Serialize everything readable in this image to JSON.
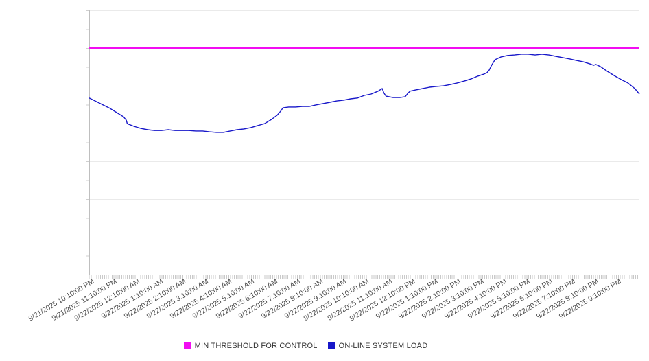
{
  "chart_data": {
    "type": "line",
    "title": "",
    "xlabel": "",
    "ylabel": "",
    "y_axis": {
      "tick_labels_visible": false,
      "normalized_range": [
        0,
        100
      ],
      "gridlines": true
    },
    "x_axis": {
      "unit": "datetime, hourly ticks with 5-minute minor ticks",
      "labels": [
        "9/21/2025 10:10:00 PM",
        "9/21/2025 11:10:00 PM",
        "9/22/2025 12:10:00 AM",
        "9/22/2025 1:10:00 AM",
        "9/22/2025 2:10:00 AM",
        "9/22/2025 3:10:00 AM",
        "9/22/2025 4:10:00 AM",
        "9/22/2025 5:10:00 AM",
        "9/22/2025 6:10:00 AM",
        "9/22/2025 7:10:00 AM",
        "9/22/2025 8:10:00 AM",
        "9/22/2025 9:10:00 AM",
        "9/22/2025 10:10:00 AM",
        "9/22/2025 11:10:00 AM",
        "9/22/2025 12:10:00 PM",
        "9/22/2025 1:10:00 PM",
        "9/22/2025 2:10:00 PM",
        "9/22/2025 3:10:00 PM",
        "9/22/2025 4:10:00 PM",
        "9/22/2025 5:10:00 PM",
        "9/22/2025 6:10:00 PM",
        "9/22/2025 7:10:00 PM",
        "9/22/2025 8:10:00 PM",
        "9/22/2025 9:10:00 PM"
      ]
    },
    "legend_position": "bottom-center",
    "series": [
      {
        "name": "MIN THRESHOLD FOR CONTROL",
        "type": "threshold",
        "color": "#F20DF2",
        "value": 85.7
      },
      {
        "name": "ON-LINE SYSTEM LOAD",
        "type": "line",
        "color": "#1717C9",
        "x_unit_hours_from_start": true,
        "points": [
          [
            0.0,
            66.8
          ],
          [
            0.3,
            65.5
          ],
          [
            0.6,
            64.2
          ],
          [
            0.9,
            62.9
          ],
          [
            1.2,
            61.3
          ],
          [
            1.5,
            59.7
          ],
          [
            1.62,
            58.4
          ],
          [
            1.66,
            57.1
          ],
          [
            1.95,
            56.1
          ],
          [
            2.25,
            55.3
          ],
          [
            2.55,
            54.8
          ],
          [
            2.85,
            54.5
          ],
          [
            3.15,
            54.5
          ],
          [
            3.45,
            54.8
          ],
          [
            3.75,
            54.5
          ],
          [
            4.05,
            54.5
          ],
          [
            4.35,
            54.5
          ],
          [
            4.65,
            54.3
          ],
          [
            4.95,
            54.3
          ],
          [
            5.25,
            54.0
          ],
          [
            5.55,
            53.8
          ],
          [
            5.85,
            53.8
          ],
          [
            6.15,
            54.3
          ],
          [
            6.45,
            54.8
          ],
          [
            6.75,
            55.1
          ],
          [
            7.05,
            55.6
          ],
          [
            7.35,
            56.4
          ],
          [
            7.65,
            57.1
          ],
          [
            7.95,
            58.7
          ],
          [
            8.2,
            60.3
          ],
          [
            8.35,
            61.8
          ],
          [
            8.45,
            63.1
          ],
          [
            8.7,
            63.4
          ],
          [
            9.0,
            63.4
          ],
          [
            9.3,
            63.6
          ],
          [
            9.6,
            63.6
          ],
          [
            9.9,
            64.2
          ],
          [
            10.2,
            64.7
          ],
          [
            10.5,
            65.2
          ],
          [
            10.8,
            65.7
          ],
          [
            11.1,
            66.0
          ],
          [
            11.4,
            66.5
          ],
          [
            11.7,
            66.8
          ],
          [
            12.0,
            67.8
          ],
          [
            12.3,
            68.3
          ],
          [
            12.6,
            69.4
          ],
          [
            12.78,
            70.4
          ],
          [
            12.85,
            68.8
          ],
          [
            12.95,
            67.5
          ],
          [
            13.25,
            67.0
          ],
          [
            13.55,
            67.0
          ],
          [
            13.78,
            67.3
          ],
          [
            13.9,
            68.6
          ],
          [
            14.0,
            69.4
          ],
          [
            14.25,
            69.9
          ],
          [
            14.55,
            70.4
          ],
          [
            14.85,
            70.9
          ],
          [
            15.15,
            71.2
          ],
          [
            15.45,
            71.4
          ],
          [
            15.75,
            71.9
          ],
          [
            16.05,
            72.5
          ],
          [
            16.35,
            73.2
          ],
          [
            16.65,
            74.0
          ],
          [
            16.95,
            75.1
          ],
          [
            17.2,
            75.8
          ],
          [
            17.35,
            76.4
          ],
          [
            17.45,
            77.4
          ],
          [
            17.55,
            79.2
          ],
          [
            17.7,
            81.3
          ],
          [
            17.95,
            82.3
          ],
          [
            18.25,
            82.9
          ],
          [
            18.55,
            83.1
          ],
          [
            18.85,
            83.4
          ],
          [
            19.15,
            83.4
          ],
          [
            19.45,
            83.1
          ],
          [
            19.75,
            83.4
          ],
          [
            20.05,
            83.1
          ],
          [
            20.35,
            82.6
          ],
          [
            20.65,
            82.1
          ],
          [
            20.95,
            81.6
          ],
          [
            21.25,
            81.0
          ],
          [
            21.55,
            80.5
          ],
          [
            21.85,
            79.7
          ],
          [
            22.0,
            79.2
          ],
          [
            22.1,
            79.5
          ],
          [
            22.3,
            78.7
          ],
          [
            22.6,
            76.9
          ],
          [
            22.9,
            75.3
          ],
          [
            23.2,
            73.8
          ],
          [
            23.5,
            72.5
          ],
          [
            23.8,
            70.4
          ],
          [
            24.0,
            68.3
          ]
        ]
      }
    ]
  },
  "legend": {
    "items": [
      {
        "label": "MIN THRESHOLD FOR CONTROL"
      },
      {
        "label": "ON-LINE SYSTEM LOAD"
      }
    ]
  }
}
